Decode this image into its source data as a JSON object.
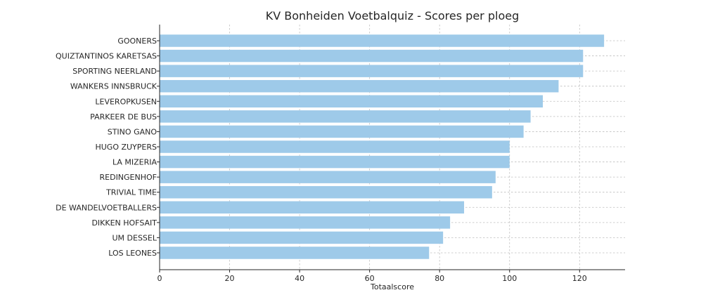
{
  "chart_data": {
    "type": "bar",
    "orientation": "horizontal",
    "title": "KV Bonheiden Voetbalquiz - Scores per ploeg",
    "xlabel": "Totaalscore",
    "ylabel": "",
    "xlim": [
      0,
      133
    ],
    "xticks": [
      0,
      20,
      40,
      60,
      80,
      100,
      120
    ],
    "grid": true,
    "bar_color": "#9ecae9",
    "categories": [
      "GOONERS",
      "QUIZTANTINOS KARETSAS",
      "SPORTING NEERLAND",
      "WANKERS INNSBRUCK",
      "LEVEROPKUSEN",
      "PARKEER DE BUS",
      "STINO GANO",
      "HUGO ZUYPERS",
      "LA MIZERIA",
      "REDINGENHOF",
      "TRIVIAL TIME",
      "DE WANDELVOETBALLERS",
      "DIKKEN HOFSAIT",
      "UM DESSEL",
      "LOS LEONES"
    ],
    "values": [
      127,
      121,
      121,
      114,
      109.5,
      106,
      104,
      100,
      100,
      96,
      95,
      87,
      83,
      81,
      77
    ]
  }
}
